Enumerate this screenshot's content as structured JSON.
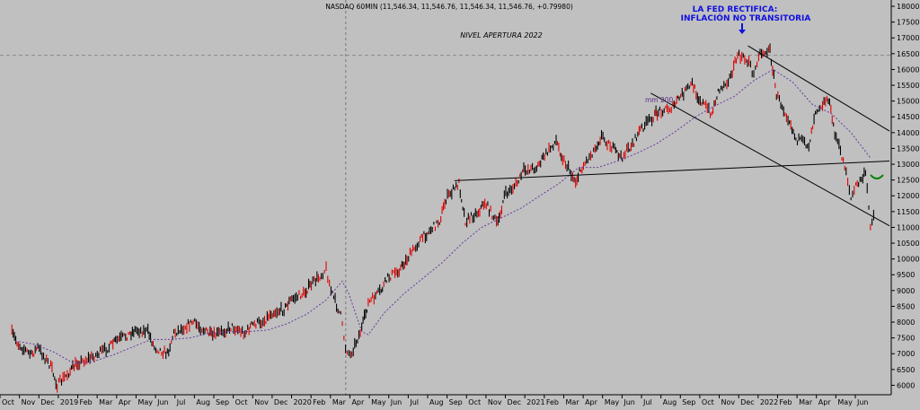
{
  "chart_data": {
    "type": "candlestick-line",
    "title": "NASDAQ 60MIN (11,546.34, 11,546.76, 11,546.34, 11,546.76, +0.79980)",
    "annotation": {
      "line1": "LA FED RECTIFICA:",
      "line2": "INFLACIÓN NO TRANSITORIA"
    },
    "level_label": "NIVEL APERTURA 2022",
    "level_value": 16450,
    "ma_label": "mm 200",
    "y_ticks": [
      "18000",
      "17500",
      "17000",
      "16500",
      "16000",
      "15500",
      "15000",
      "14500",
      "14000",
      "13500",
      "13000",
      "12500",
      "12000",
      "11500",
      "11000",
      "10500",
      "10000",
      "9500",
      "9000",
      "8500",
      "8000",
      "7500",
      "7000",
      "6500",
      "6000"
    ],
    "y_tick_values": [
      18000,
      17500,
      17000,
      16500,
      16000,
      15500,
      15000,
      14500,
      14000,
      13500,
      13000,
      12500,
      12000,
      11500,
      11000,
      10500,
      10000,
      9500,
      9000,
      8500,
      8000,
      7500,
      7000,
      6500,
      6000
    ],
    "x_ticks": [
      "Oct",
      "Nov",
      "Dec",
      "2019",
      "Feb",
      "Mar",
      "Apr",
      "May",
      "Jun",
      "Jul",
      "Aug",
      "Sep",
      "Oct",
      "Nov",
      "Dec",
      "2020",
      "Feb",
      "Mar",
      "Apr",
      "May",
      "Jun",
      "Jul",
      "Aug",
      "Sep",
      "Oct",
      "Nov",
      "Dec",
      "2021",
      "Feb",
      "Mar",
      "Apr",
      "May",
      "Jun",
      "Jul",
      "Aug",
      "Sep",
      "Oct",
      "Nov",
      "Dec",
      "2022",
      "Feb",
      "Mar",
      "Apr",
      "May",
      "Jun"
    ],
    "x_tick_dates": [
      "2018-10",
      "2018-11",
      "2018-12",
      "2019-01",
      "2019-02",
      "2019-03",
      "2019-04",
      "2019-05",
      "2019-06",
      "2019-07",
      "2019-08",
      "2019-09",
      "2019-10",
      "2019-11",
      "2019-12",
      "2020-01",
      "2020-02",
      "2020-03",
      "2020-04",
      "2020-05",
      "2020-06",
      "2020-07",
      "2020-08",
      "2020-09",
      "2020-10",
      "2020-11",
      "2020-12",
      "2021-01",
      "2021-02",
      "2021-03",
      "2021-04",
      "2021-05",
      "2021-06",
      "2021-07",
      "2021-08",
      "2021-09",
      "2021-10",
      "2021-11",
      "2021-12",
      "2022-01",
      "2022-02",
      "2022-03",
      "2022-04",
      "2022-05",
      "2022-06"
    ],
    "y_range": [
      5700,
      18200
    ],
    "x_range": [
      "2018-10",
      "2022-06"
    ],
    "price_path": [
      [
        "2018-10",
        7650
      ],
      [
        "2018-10",
        7300
      ],
      [
        "2018-11",
        6950
      ],
      [
        "2018-11",
        7200
      ],
      [
        "2018-12",
        6600
      ],
      [
        "2018-12",
        6000
      ],
      [
        "2019-01",
        6450
      ],
      [
        "2019-01",
        6700
      ],
      [
        "2019-02",
        6900
      ],
      [
        "2019-03",
        7200
      ],
      [
        "2019-03",
        7400
      ],
      [
        "2019-04",
        7600
      ],
      [
        "2019-04",
        7750
      ],
      [
        "2019-05",
        7700
      ],
      [
        "2019-05",
        7200
      ],
      [
        "2019-06",
        7000
      ],
      [
        "2019-06",
        7650
      ],
      [
        "2019-07",
        7900
      ],
      [
        "2019-07",
        8000
      ],
      [
        "2019-08",
        7700
      ],
      [
        "2019-08",
        7550
      ],
      [
        "2019-09",
        7750
      ],
      [
        "2019-09",
        7850
      ],
      [
        "2019-10",
        7650
      ],
      [
        "2019-10",
        7900
      ],
      [
        "2019-11",
        8050
      ],
      [
        "2019-11",
        8300
      ],
      [
        "2019-12",
        8400
      ],
      [
        "2019-12",
        8700
      ],
      [
        "2020-01",
        8900
      ],
      [
        "2020-01",
        9150
      ],
      [
        "2020-02",
        9500
      ],
      [
        "2020-02",
        9700
      ],
      [
        "2020-02",
        9000
      ],
      [
        "2020-03",
        8200
      ],
      [
        "2020-03",
        7200
      ],
      [
        "2020-03",
        6950
      ],
      [
        "2020-04",
        7800
      ],
      [
        "2020-04",
        8600
      ],
      [
        "2020-05",
        9000
      ],
      [
        "2020-05",
        9400
      ],
      [
        "2020-06",
        9700
      ],
      [
        "2020-06",
        10000
      ],
      [
        "2020-07",
        10600
      ],
      [
        "2020-07",
        10800
      ],
      [
        "2020-08",
        11200
      ],
      [
        "2020-08",
        11900
      ],
      [
        "2020-09",
        12400
      ],
      [
        "2020-09",
        11200
      ],
      [
        "2020-10",
        11500
      ],
      [
        "2020-10",
        11800
      ],
      [
        "2020-11",
        11100
      ],
      [
        "2020-11",
        12000
      ],
      [
        "2020-12",
        12400
      ],
      [
        "2020-12",
        12800
      ],
      [
        "2021-01",
        12900
      ],
      [
        "2021-01",
        13200
      ],
      [
        "2021-02",
        13750
      ],
      [
        "2021-02",
        13200
      ],
      [
        "2021-03",
        12450
      ],
      [
        "2021-03",
        12900
      ],
      [
        "2021-04",
        13500
      ],
      [
        "2021-04",
        13900
      ],
      [
        "2021-05",
        13450
      ],
      [
        "2021-05",
        13200
      ],
      [
        "2021-06",
        13700
      ],
      [
        "2021-06",
        14100
      ],
      [
        "2021-07",
        14500
      ],
      [
        "2021-07",
        14700
      ],
      [
        "2021-08",
        14800
      ],
      [
        "2021-08",
        15100
      ],
      [
        "2021-09",
        15550
      ],
      [
        "2021-09",
        15100
      ],
      [
        "2021-10",
        14600
      ],
      [
        "2021-10",
        15300
      ],
      [
        "2021-11",
        15800
      ],
      [
        "2021-11",
        16450
      ],
      [
        "2021-12",
        16250
      ],
      [
        "2021-12",
        15800
      ],
      [
        "2021-12",
        16500
      ],
      [
        "2022-01",
        16600
      ],
      [
        "2022-01",
        15200
      ],
      [
        "2022-02",
        14400
      ],
      [
        "2022-02",
        13800
      ],
      [
        "2022-03",
        13600
      ],
      [
        "2022-03",
        14700
      ],
      [
        "2022-04",
        15100
      ],
      [
        "2022-04",
        14000
      ],
      [
        "2022-05",
        12800
      ],
      [
        "2022-05",
        11900
      ],
      [
        "2022-05",
        12300
      ],
      [
        "2022-06",
        12700
      ],
      [
        "2022-06",
        11100
      ],
      [
        "2022-06",
        11546
      ]
    ],
    "ma_path": [
      [
        "2018-10",
        7400
      ],
      [
        "2018-11",
        7300
      ],
      [
        "2018-12",
        7050
      ],
      [
        "2019-01",
        6700
      ],
      [
        "2019-02",
        6750
      ],
      [
        "2019-03",
        6950
      ],
      [
        "2019-04",
        7200
      ],
      [
        "2019-05",
        7450
      ],
      [
        "2019-06",
        7450
      ],
      [
        "2019-07",
        7500
      ],
      [
        "2019-08",
        7650
      ],
      [
        "2019-09",
        7700
      ],
      [
        "2019-10",
        7700
      ],
      [
        "2019-11",
        7750
      ],
      [
        "2019-12",
        7950
      ],
      [
        "2020-01",
        8250
      ],
      [
        "2020-02",
        8700
      ],
      [
        "2020-03",
        9300
      ],
      [
        "2020-03",
        8900
      ],
      [
        "2020-04",
        7700
      ],
      [
        "2020-04",
        7600
      ],
      [
        "2020-05",
        8300
      ],
      [
        "2020-06",
        8900
      ],
      [
        "2020-07",
        9400
      ],
      [
        "2020-08",
        9900
      ],
      [
        "2020-09",
        10500
      ],
      [
        "2020-10",
        11000
      ],
      [
        "2020-11",
        11300
      ],
      [
        "2020-12",
        11600
      ],
      [
        "2021-01",
        12000
      ],
      [
        "2021-02",
        12400
      ],
      [
        "2021-03",
        12900
      ],
      [
        "2021-04",
        12900
      ],
      [
        "2021-05",
        13100
      ],
      [
        "2021-06",
        13350
      ],
      [
        "2021-07",
        13650
      ],
      [
        "2021-08",
        14050
      ],
      [
        "2021-09",
        14500
      ],
      [
        "2021-10",
        14850
      ],
      [
        "2021-11",
        15150
      ],
      [
        "2021-12",
        15650
      ],
      [
        "2022-01",
        16000
      ],
      [
        "2022-02",
        15600
      ],
      [
        "2022-03",
        14900
      ],
      [
        "2022-04",
        14600
      ],
      [
        "2022-05",
        14000
      ],
      [
        "2022-06",
        13200
      ]
    ],
    "trendlines": [
      {
        "from": [
          "2020-09",
          12480
        ],
        "to": [
          "2022-06",
          13100
        ]
      },
      {
        "from": [
          "2021-12",
          16750
        ],
        "to": [
          "2022-06",
          14050
        ]
      },
      {
        "from": [
          "2021-07",
          15250
        ],
        "to": [
          "2022-06",
          11050
        ]
      }
    ],
    "vertical_marker": "2020-03",
    "colors": {
      "background": "#c0c0c0",
      "candle_up": "#000000",
      "candle_down": "#e00000",
      "ma": "#6a3aa0",
      "annotation": "#1010e0",
      "level": "#888888",
      "circle": "#008000"
    }
  }
}
